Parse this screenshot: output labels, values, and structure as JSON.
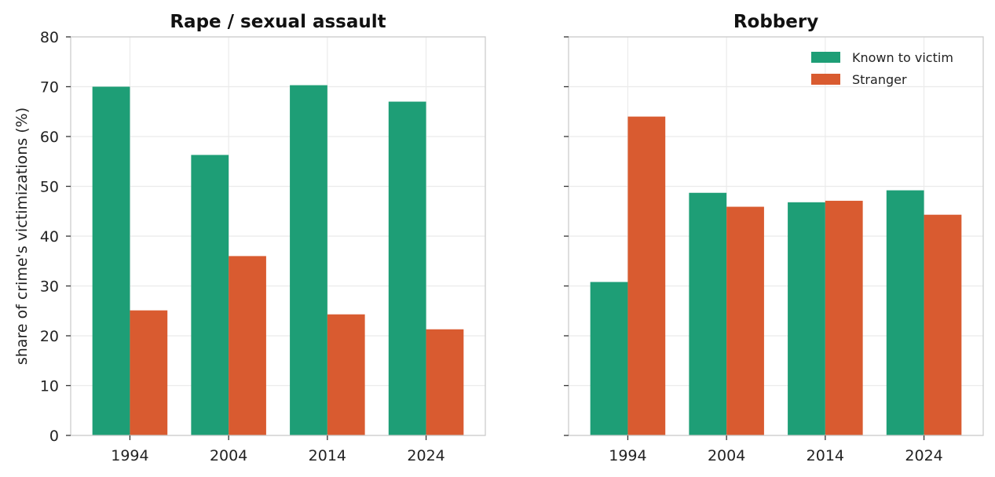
{
  "chart_data": [
    {
      "type": "bar",
      "title": "Rape / sexual assault",
      "ylabel": "share of crime's victimizations (%)",
      "xlabel": "",
      "categories": [
        "1994",
        "2004",
        "2014",
        "2024"
      ],
      "ylim": [
        0,
        80
      ],
      "yticks": [
        0,
        10,
        20,
        30,
        40,
        50,
        60,
        70,
        80
      ],
      "grid": true,
      "series": [
        {
          "name": "Known to victim",
          "color": "#1e9e76",
          "values": [
            70.0,
            56.3,
            70.3,
            67.0
          ]
        },
        {
          "name": "Stranger",
          "color": "#d95b30",
          "values": [
            25.1,
            36.0,
            24.3,
            21.3
          ]
        }
      ]
    },
    {
      "type": "bar",
      "title": "Robbery",
      "ylabel": "",
      "xlabel": "",
      "categories": [
        "1994",
        "2004",
        "2014",
        "2024"
      ],
      "ylim": [
        0,
        80
      ],
      "yticks": [
        0,
        10,
        20,
        30,
        40,
        50,
        60,
        70,
        80
      ],
      "grid": true,
      "legend": "top-right",
      "series": [
        {
          "name": "Known to victim",
          "color": "#1e9e76",
          "values": [
            30.8,
            48.7,
            46.8,
            49.2
          ]
        },
        {
          "name": "Stranger",
          "color": "#d95b30",
          "values": [
            64.0,
            45.9,
            47.1,
            44.3
          ]
        }
      ]
    }
  ],
  "legend": {
    "items": [
      {
        "label": "Known to victim",
        "color": "#1e9e76"
      },
      {
        "label": "Stranger",
        "color": "#d95b30"
      }
    ]
  }
}
